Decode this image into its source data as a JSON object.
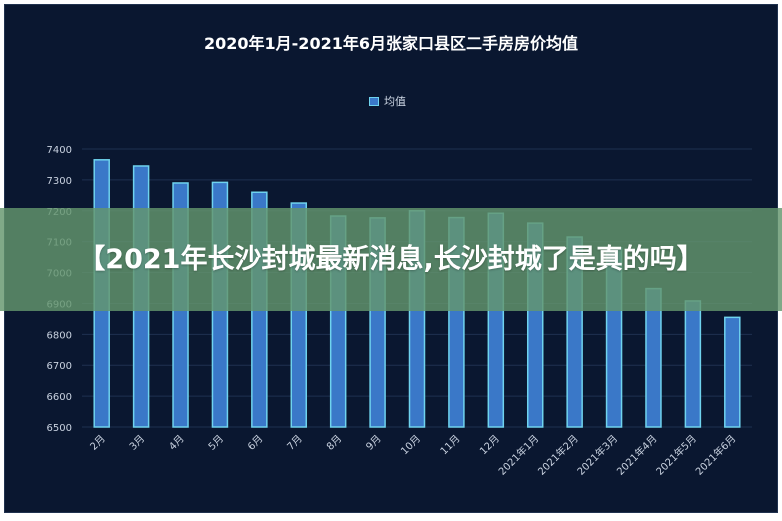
{
  "chart_data": {
    "type": "bar",
    "title": "2020年1月-2021年6月张家口县区二手房房价均值",
    "categories": [
      "2月",
      "3月",
      "4月",
      "5月",
      "6月",
      "7月",
      "8月",
      "9月",
      "10月",
      "11月",
      "12月",
      "2021年1月",
      "2021年2月",
      "2021年3月",
      "2021年4月",
      "2021年5月",
      "2021年6月"
    ],
    "series": [
      {
        "name": "均值",
        "values": [
          7365,
          7345,
          7290,
          7292,
          7260,
          7225,
          7183,
          7177,
          7200,
          7178,
          7192,
          7160,
          7115,
          7080,
          6948,
          6908,
          6855
        ]
      }
    ],
    "ylim": [
      6500,
      7400
    ],
    "yticks": [
      6500,
      6600,
      6700,
      6800,
      6900,
      7000,
      7100,
      7200,
      7300,
      7400
    ],
    "xlabel": "",
    "ylabel": "",
    "legend_position": "top-center",
    "grid": true,
    "colors": {
      "bar_fill": "#3a78c8",
      "bar_stroke": "#6fd3ee",
      "background": "#0a1730",
      "grid": "#1f3150",
      "text": "#c9d2e0"
    }
  },
  "overlay": {
    "headline": "【2021年长沙封城最新消息,长沙封城了是真的吗】"
  }
}
